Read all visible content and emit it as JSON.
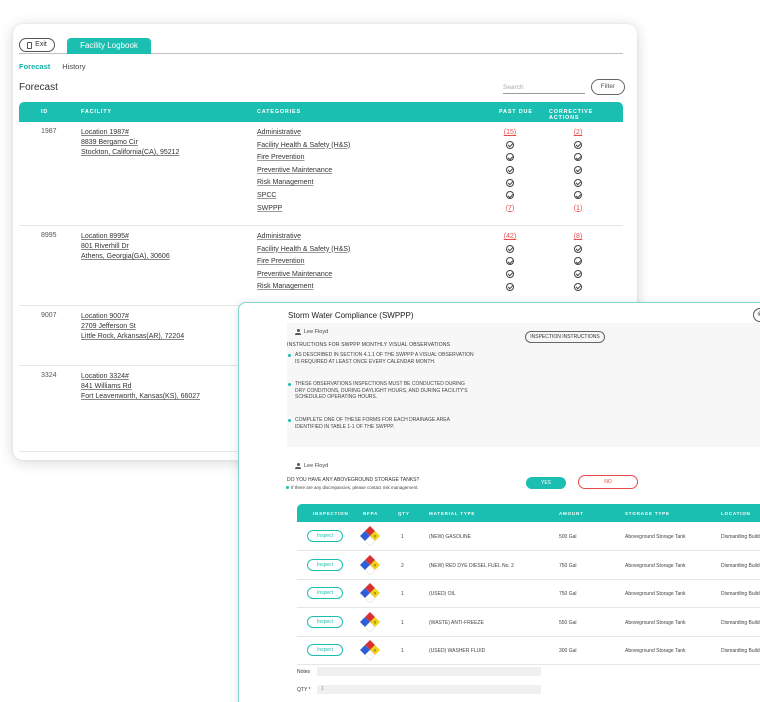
{
  "topbar": {
    "exit_label": "Exit",
    "tab_label": "Facility Logbook"
  },
  "subtabs": {
    "forecast": "Forecast",
    "history": "History"
  },
  "page_title": "Forecast",
  "search": {
    "placeholder": "Search"
  },
  "filter_label": "Filter",
  "columns": {
    "id": "ID",
    "facility": "FACILITY",
    "categories": "CATEGORIES",
    "past_due": "PAST DUE",
    "corrective": "CORRECTIVE ACTIONS"
  },
  "facilities": [
    {
      "id": "1987",
      "location": "Location 1987#",
      "address1": "8839 Bergamo Cir",
      "address2": "Stockton, California(CA), 95212",
      "categories": [
        "Administrative",
        "Facility Health & Safety (H&S)",
        "Fire Prevention",
        "Preventive Maintenance",
        "Risk Management",
        "SPCC",
        "SWPPP"
      ],
      "past_due": [
        "(15)",
        "check",
        "check",
        "check",
        "check",
        "check",
        "(7)"
      ],
      "corrective": [
        "(2)",
        "check",
        "check",
        "check",
        "check",
        "check",
        "(1)"
      ]
    },
    {
      "id": "8995",
      "location": "Location 8995#",
      "address1": "801 Riverhill Dr",
      "address2": "Athens, Georgia(GA), 30606",
      "categories": [
        "Administrative",
        "Facility Health & Safety (H&S)",
        "Fire Prevention",
        "Preventive Maintenance",
        "Risk Management"
      ],
      "past_due": [
        "(42)",
        "check",
        "check",
        "check",
        "check"
      ],
      "corrective": [
        "(8)",
        "check",
        "check",
        "check",
        "check"
      ]
    },
    {
      "id": "9007",
      "location": "Location 9007#",
      "address1": "2709 Jefferson St",
      "address2": "Little Rock, Arkansas(AR), 72204"
    },
    {
      "id": "3324",
      "location": "Location 3324#",
      "address1": "841 Williams Rd",
      "address2": "Fort Leavenworth, Kansas(KS), 66027"
    }
  ],
  "modal": {
    "title": "Storm Water Compliance (SWPPP)",
    "close_glyph": "⊗",
    "user_name": "Lee Floyd",
    "instructions_title": "INSTRUCTIONS FOR SWPPP MONTHLY VISUAL OBSERVATIONS",
    "instructions_button": "INSPECTION INSTRUCTIONS",
    "bullets": [
      "AS DESCRIBED IN SECTION 4.1.1 OF THE SWPPP A VISUAL OBSERVATION IS REQUIRED AT LEAST ONCE EVERY CALENDAR MONTH.",
      "THESE OBSERVATIONS INSPECTIONS MUST BE CONDUCTED DURING DRY CONDITIONS, DURING DAYLIGHT HOURS, AND DURING FACILITY'S SCHEDULED OPERATING HOURS.",
      "COMPLETE ONE OF THESE FORMS FOR EACH DRAINAGE AREA IDENTIFIED IN TABLE 1-1 OF THE SWPPP."
    ],
    "question": "DO YOU HAVE ANY ABOVEGROUND STORAGE TANKS?",
    "question_note": "If there are any discrepancies, please contact risk management.",
    "yes_label": "YES",
    "no_label": "NO",
    "columns": {
      "inspection": "INSPECTION",
      "nfpa": "NFPA",
      "qty": "QTY",
      "material": "MATERIAL TYPE",
      "amount": "AMOUNT",
      "storage": "STORAGE TYPE",
      "location": "LOCATION"
    },
    "tanks": [
      {
        "inspect": "Inspect",
        "nfpa": "0",
        "qty": "1",
        "material": "(NEW) GASOLINE",
        "amount": "500 Gal",
        "storage": "Aboveground Storage Tank",
        "location": "Dismantling Building"
      },
      {
        "inspect": "Inspect",
        "nfpa": "0",
        "qty": "2",
        "material": "(NEW) RED DYE DIESEL FUEL No. 2",
        "amount": "750 Gal",
        "storage": "Aboveground Storage Tank",
        "location": "Dismantling Building"
      },
      {
        "inspect": "Inspect",
        "nfpa": "0",
        "qty": "1",
        "material": "(USED) OIL",
        "amount": "750 Gal",
        "storage": "Aboveground Storage Tank",
        "location": "Dismantling Building"
      },
      {
        "inspect": "Inspect",
        "nfpa": "0",
        "qty": "1",
        "material": "(WASTE) ANTI-FREEZE",
        "amount": "550 Gal",
        "storage": "Aboveground Storage Tank",
        "location": "Dismantling Building"
      },
      {
        "inspect": "Inspect",
        "nfpa": "0",
        "qty": "1",
        "material": "(USED) WASHER FLUID",
        "amount": "300 Gal",
        "storage": "Aboveground Storage Tank",
        "location": "Dismantling Building"
      }
    ],
    "notes_label": "Notes",
    "qty_label": "QTY *",
    "qty_value": "1"
  },
  "colors": {
    "accent": "#1bbfb2",
    "alert": "#e84a4a"
  },
  "icons": [
    "exit-doc-icon",
    "check-circle-icon",
    "user-icon",
    "nfpa-diamond-icon",
    "close-circle-icon"
  ]
}
